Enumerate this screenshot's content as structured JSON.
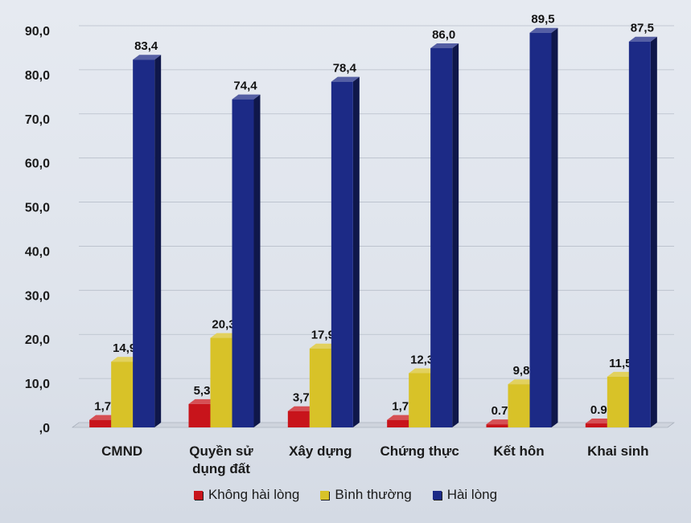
{
  "chart_data": {
    "type": "bar",
    "categories": [
      "CMND",
      "Quyền sử\ndụng đất",
      "Xây dựng",
      "Chứng thực",
      "Kết hôn",
      "Khai sinh"
    ],
    "series": [
      {
        "name": "Không hài lòng",
        "color": "#c8141b",
        "values": [
          1.7,
          5.3,
          3.7,
          1.7,
          0.7,
          0.9
        ],
        "labels": [
          "1,7",
          "5,3",
          "3,7",
          "1,7",
          "0.7",
          "0.9"
        ]
      },
      {
        "name": "Bình thường",
        "color": "#d8c228",
        "values": [
          14.9,
          20.3,
          17.9,
          12.3,
          9.8,
          11.5
        ],
        "labels": [
          "14,9",
          "20,3",
          "17,9",
          "12,3",
          "9,8",
          "11,5"
        ]
      },
      {
        "name": "Hài lòng",
        "color": "#1c2a86",
        "values": [
          83.4,
          74.4,
          78.4,
          86.0,
          89.5,
          87.5
        ],
        "labels": [
          "83,4",
          "74,4",
          "78,4",
          "86,0",
          "89,5",
          "87,5"
        ]
      }
    ],
    "ylim": [
      0,
      90
    ],
    "yticks": [
      ",0",
      "10,0",
      "20,0",
      "30,0",
      "40,0",
      "50,0",
      "60,0",
      "70,0",
      "80,0",
      "90,0"
    ],
    "grid": true,
    "legend_position": "bottom"
  }
}
